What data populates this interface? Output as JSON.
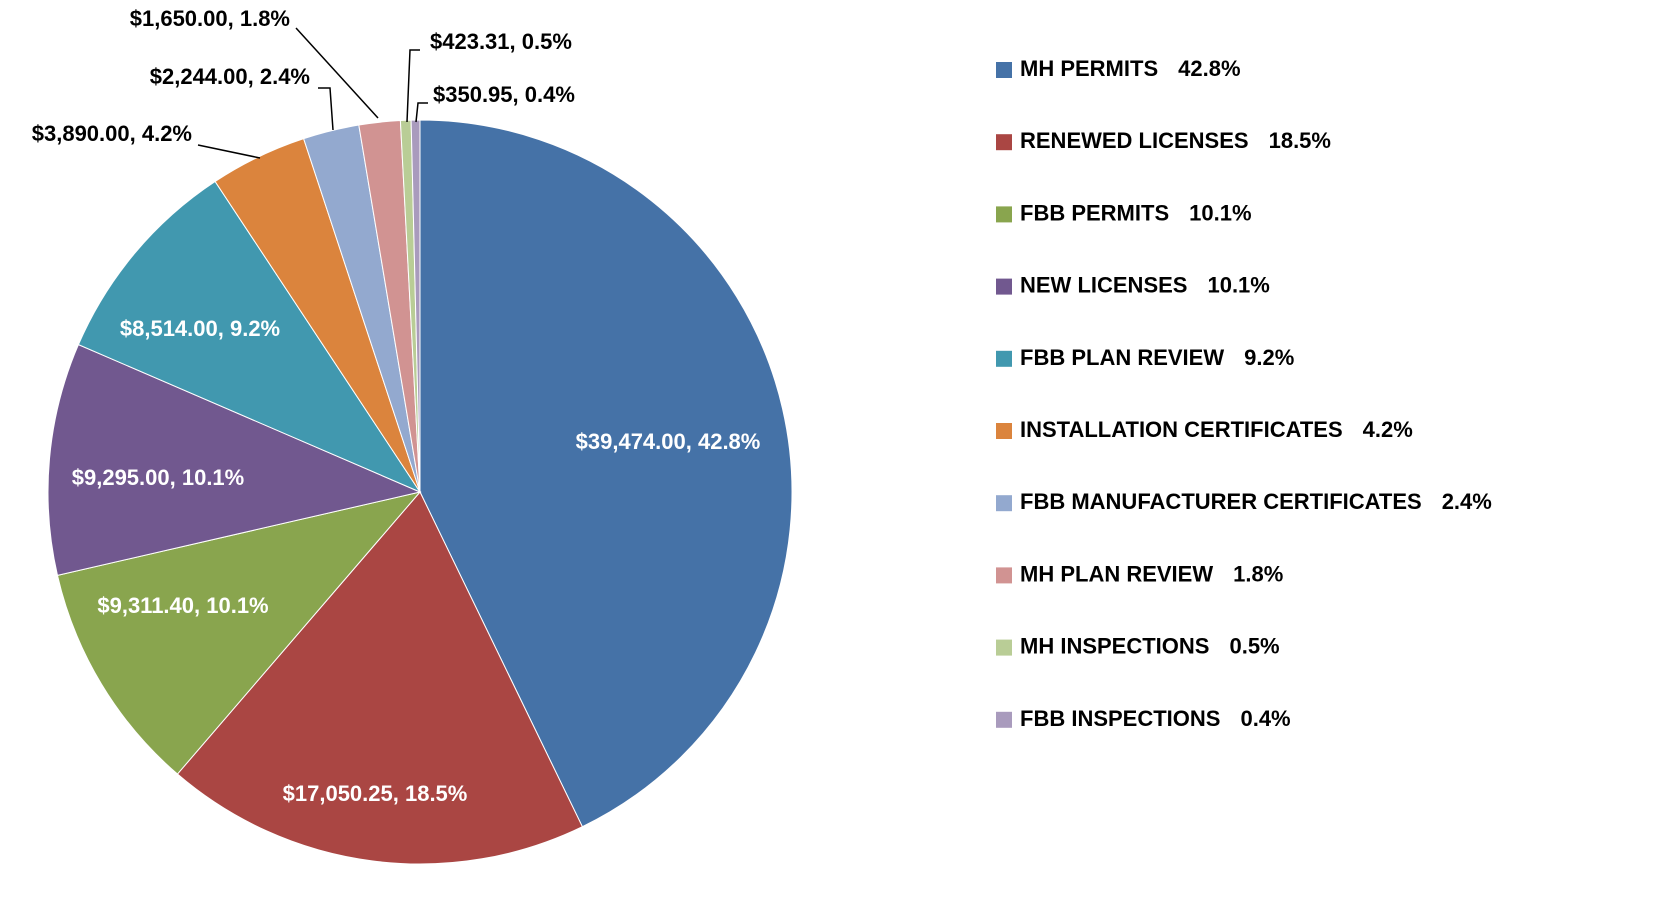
{
  "chart_data": {
    "type": "pie",
    "categories": [
      "MH PERMITS",
      "RENEWED LICENSES",
      "FBB PERMITS",
      "NEW LICENSES",
      "FBB PLAN REVIEW",
      "INSTALLATION CERTIFICATES",
      "FBB MANUFACTURER CERTIFICATES",
      "MH PLAN REVIEW",
      "MH INSPECTIONS",
      "FBB INSPECTIONS"
    ],
    "values": [
      39474.0,
      17050.25,
      9311.4,
      9295.0,
      8514.0,
      3890.0,
      2244.0,
      1650.0,
      423.31,
      350.95
    ],
    "value_labels": [
      "$39,474.00, 42.8%",
      "$17,050.25, 18.5%",
      "$9,311.40, 10.1%",
      "$9,295.00, 10.1%",
      "$8,514.00, 9.2%",
      "$3,890.00, 4.2%",
      "$2,244.00, 2.4%",
      "$1,650.00, 1.8%",
      "$423.31, 0.5%",
      "$350.95, 0.4%"
    ],
    "legend_labels": [
      "42.8%",
      "18.5%",
      "10.1%",
      "10.1%",
      "9.2%",
      "4.2%",
      "2.4%",
      "1.8%",
      "0.5%",
      "0.4%"
    ],
    "colors": [
      "#4572a7",
      "#aa4643",
      "#89a54e",
      "#71588f",
      "#4198af",
      "#db843d",
      "#93a9cf",
      "#d19392",
      "#b9cd96",
      "#a99bbd"
    ],
    "legend": "right"
  }
}
